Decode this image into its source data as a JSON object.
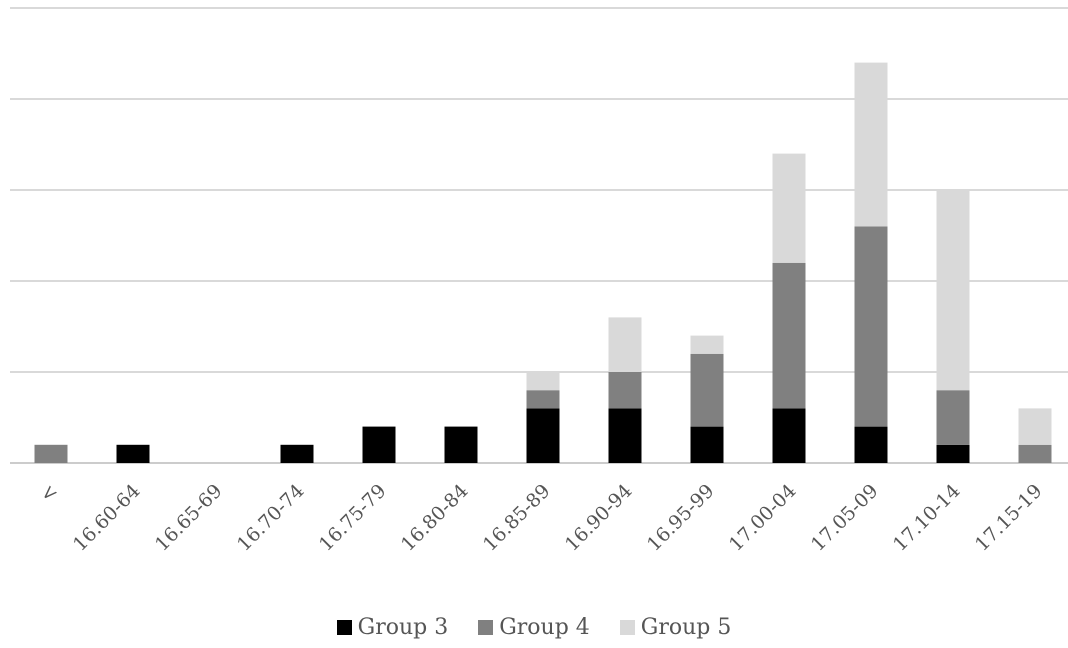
{
  "chart_data": {
    "type": "bar",
    "stacked": true,
    "categories": [
      "<",
      "16.60-64",
      "16.65-69",
      "16.70-74",
      "16.75-79",
      "16.80-84",
      "16.85-89",
      "16.90-94",
      "16.95-99",
      "17.00-04",
      "17.05-09",
      "17.10-14",
      "17.15-19"
    ],
    "series": [
      {
        "name": "Group 3",
        "color": "#000000",
        "values": [
          0,
          1,
          0,
          1,
          2,
          2,
          3,
          3,
          2,
          3,
          2,
          1,
          0
        ]
      },
      {
        "name": "Group 4",
        "color": "#808080",
        "values": [
          1,
          0,
          0,
          0,
          0,
          0,
          1,
          2,
          4,
          8,
          11,
          3,
          1
        ]
      },
      {
        "name": "Group 5",
        "color": "#d9d9d9",
        "values": [
          0,
          0,
          0,
          0,
          0,
          0,
          1,
          3,
          1,
          6,
          9,
          11,
          2
        ]
      }
    ],
    "ylim": [
      0,
      25
    ],
    "gridlines": [
      0,
      5,
      10,
      15,
      20,
      25
    ],
    "grid": true,
    "y_tick_labels_visible": false,
    "legend_position": "bottom"
  }
}
